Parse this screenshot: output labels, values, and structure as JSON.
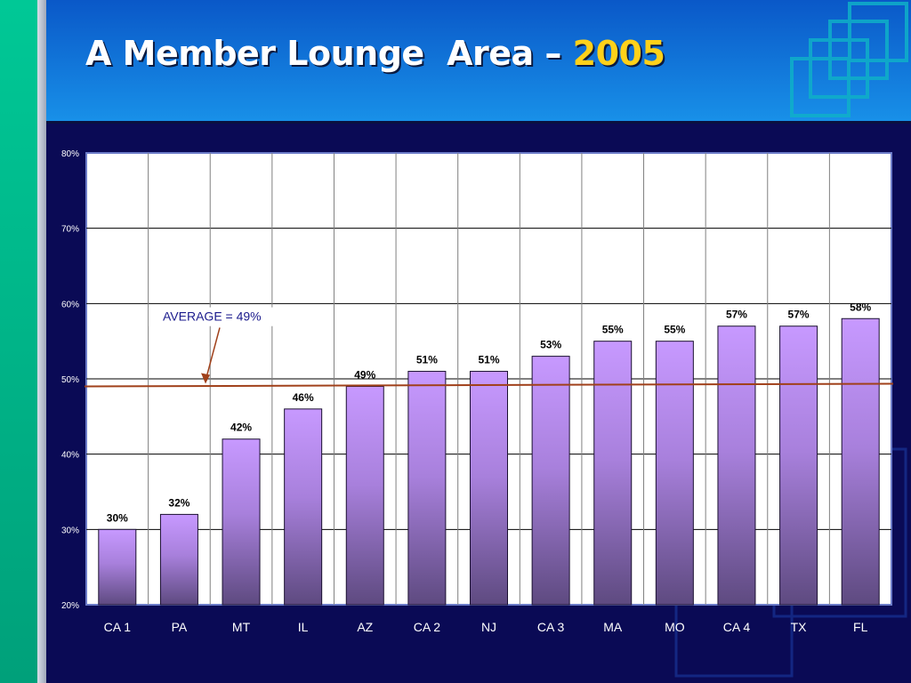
{
  "slide": {
    "title_prefix": "A Member Lounge  Area – ",
    "title_year": "2005"
  },
  "colors": {
    "background": "#0a0a55",
    "header_blue": "#1474d8",
    "left_strip_green": "#00c896",
    "title_text": "#ffffff",
    "title_year": "#ffd11a",
    "bar_top": "#c799ff",
    "bar_bottom": "#5e4a80",
    "average_line": "#a0401a",
    "annotation_text": "#1a1a8c"
  },
  "chart_data": {
    "type": "bar",
    "categories": [
      "CA 1",
      "PA",
      "MT",
      "IL",
      "AZ",
      "CA 2",
      "NJ",
      "CA 3",
      "MA",
      "MO",
      "CA 4",
      "TX",
      "FL"
    ],
    "values": [
      30,
      32,
      42,
      46,
      49,
      51,
      51,
      53,
      55,
      55,
      57,
      57,
      58
    ],
    "value_labels": [
      "30%",
      "32%",
      "42%",
      "46%",
      "49%",
      "51%",
      "51%",
      "53%",
      "55%",
      "55%",
      "57%",
      "57%",
      "58%"
    ],
    "ylim": [
      20,
      80
    ],
    "yticks": [
      20,
      30,
      40,
      50,
      60,
      70,
      80
    ],
    "ytick_labels": [
      "20%",
      "30%",
      "40%",
      "50%",
      "60%",
      "70%",
      "80%"
    ],
    "grid": true,
    "average": {
      "value": 49,
      "label": "AVERAGE = 49%"
    }
  }
}
